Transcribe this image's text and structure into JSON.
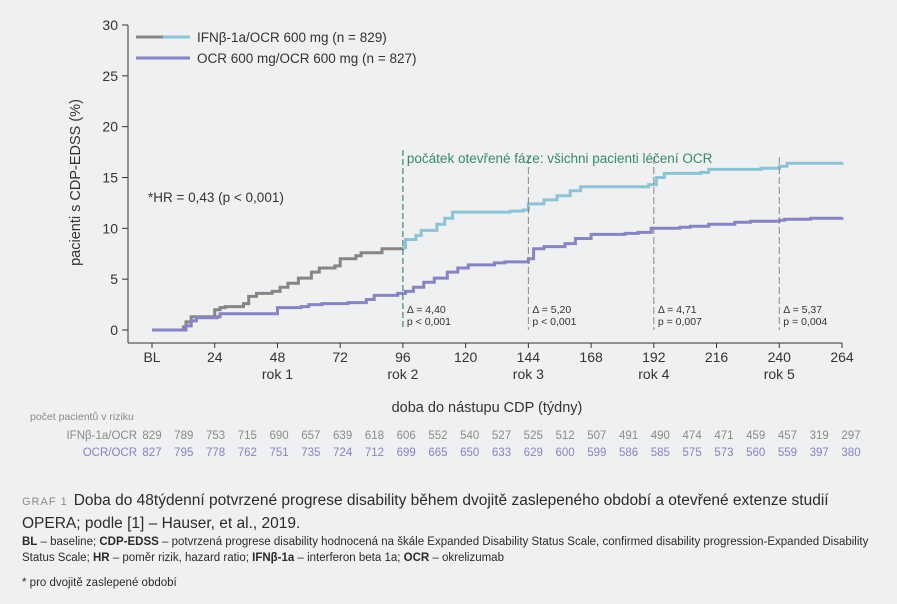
{
  "chart_data": {
    "type": "line",
    "subtype": "kaplan-meier-step",
    "ylabel": "pacienti s CDP-EDSS (%)",
    "xlabel": "doba do nástupu CDP (týdny)",
    "ylim": [
      0,
      30
    ],
    "xlim": [
      0,
      264
    ],
    "y_ticks": [
      0,
      5,
      10,
      15,
      20,
      25,
      30
    ],
    "x_ticks": [
      {
        "value": 0,
        "label": "BL"
      },
      {
        "value": 24,
        "label": "24"
      },
      {
        "value": 48,
        "label": "48"
      },
      {
        "value": 72,
        "label": "72"
      },
      {
        "value": 96,
        "label": "96"
      },
      {
        "value": 120,
        "label": "120"
      },
      {
        "value": 144,
        "label": "144"
      },
      {
        "value": 168,
        "label": "168"
      },
      {
        "value": 192,
        "label": "192"
      },
      {
        "value": 216,
        "label": "216"
      },
      {
        "value": 240,
        "label": "240"
      },
      {
        "value": 264,
        "label": "264"
      }
    ],
    "year_labels": [
      {
        "value": 48,
        "label": "rok 1"
      },
      {
        "value": 96,
        "label": "rok 2"
      },
      {
        "value": 144,
        "label": "rok 3"
      },
      {
        "value": 192,
        "label": "rok 4"
      },
      {
        "value": 240,
        "label": "rok 5"
      }
    ],
    "legend_position": "top-left",
    "grid": false,
    "series": [
      {
        "name": "IFNβ-1a/OCR 600 mg (n = 829)",
        "color_before": "#8a8580",
        "color_after": "#8cc3d5",
        "switch_x": 96,
        "points": [
          [
            0,
            0
          ],
          [
            10,
            0
          ],
          [
            12,
            0.3
          ],
          [
            13,
            0.8
          ],
          [
            15,
            1.3
          ],
          [
            23,
            1.3
          ],
          [
            24,
            2.0
          ],
          [
            26,
            2.2
          ],
          [
            28,
            2.3
          ],
          [
            35,
            2.6
          ],
          [
            37,
            3.3
          ],
          [
            40,
            3.6
          ],
          [
            46,
            3.8
          ],
          [
            49,
            4.2
          ],
          [
            52,
            4.6
          ],
          [
            56,
            5.1
          ],
          [
            61,
            5.7
          ],
          [
            64,
            6.1
          ],
          [
            70,
            6.3
          ],
          [
            72,
            7.0
          ],
          [
            78,
            7.3
          ],
          [
            80,
            7.6
          ],
          [
            88,
            8.0
          ],
          [
            96,
            8.1
          ],
          [
            97,
            8.9
          ],
          [
            101,
            9.3
          ],
          [
            103,
            9.8
          ],
          [
            109,
            10.4
          ],
          [
            112,
            11.0
          ],
          [
            115,
            11.6
          ],
          [
            137,
            11.7
          ],
          [
            142,
            11.8
          ],
          [
            144,
            12.4
          ],
          [
            150,
            12.8
          ],
          [
            155,
            13.2
          ],
          [
            160,
            13.7
          ],
          [
            164,
            14.1
          ],
          [
            190,
            14.3
          ],
          [
            193,
            15.0
          ],
          [
            196,
            15.4
          ],
          [
            210,
            15.5
          ],
          [
            213,
            15.8
          ],
          [
            233,
            15.9
          ],
          [
            240,
            16.1
          ],
          [
            243,
            16.4
          ],
          [
            264,
            16.5
          ]
        ]
      },
      {
        "name": "OCR 600 mg/OCR 600 mg (n = 827)",
        "color": "#8485c2",
        "points": [
          [
            0,
            0
          ],
          [
            12,
            0
          ],
          [
            13,
            0.4
          ],
          [
            15,
            0.9
          ],
          [
            17,
            1.2
          ],
          [
            25,
            1.3
          ],
          [
            26,
            1.6
          ],
          [
            48,
            2.2
          ],
          [
            57,
            2.3
          ],
          [
            60,
            2.5
          ],
          [
            65,
            2.6
          ],
          [
            75,
            2.7
          ],
          [
            82,
            3.0
          ],
          [
            85,
            3.4
          ],
          [
            94,
            3.6
          ],
          [
            97,
            3.8
          ],
          [
            100,
            4.2
          ],
          [
            104,
            4.7
          ],
          [
            108,
            5.1
          ],
          [
            113,
            5.7
          ],
          [
            117,
            6.1
          ],
          [
            121,
            6.4
          ],
          [
            131,
            6.6
          ],
          [
            135,
            6.7
          ],
          [
            144,
            7.0
          ],
          [
            146,
            8.0
          ],
          [
            150,
            8.2
          ],
          [
            158,
            8.5
          ],
          [
            162,
            9.0
          ],
          [
            168,
            9.4
          ],
          [
            181,
            9.5
          ],
          [
            186,
            9.6
          ],
          [
            191,
            10.0
          ],
          [
            202,
            10.1
          ],
          [
            206,
            10.2
          ],
          [
            213,
            10.4
          ],
          [
            223,
            10.6
          ],
          [
            229,
            10.7
          ],
          [
            240,
            10.8
          ],
          [
            242,
            10.9
          ],
          [
            252,
            11.0
          ],
          [
            264,
            11.1
          ]
        ]
      }
    ],
    "annotations": {
      "hr_text": "*HR = 0,43 (p < 0,001)",
      "phase_label": "počátek otevřené fáze: všichni pacienti léčení OCR",
      "deltas": [
        {
          "x": 96,
          "delta": "Δ = 4,40",
          "p": "p < 0,001"
        },
        {
          "x": 144,
          "delta": "Δ = 5,20",
          "p": "p < 0,001"
        },
        {
          "x": 192,
          "delta": "Δ = 4,71",
          "p": "p = 0,007"
        },
        {
          "x": 240,
          "delta": "Δ = 5,37",
          "p": "p = 0,004"
        }
      ]
    },
    "risk_table": {
      "title": "počet pacientů v riziku",
      "rows": [
        {
          "label": "IFNβ-1a/OCR",
          "color": "#8a8a8a",
          "values": [
            "829",
            "789",
            "753",
            "715",
            "690",
            "657",
            "639",
            "618",
            "606",
            "552",
            "540",
            "527",
            "525",
            "512",
            "507",
            "491",
            "490",
            "474",
            "471",
            "459",
            "457",
            "319",
            "297"
          ]
        },
        {
          "label": "OCR/OCR",
          "color": "#8485c2",
          "values": [
            "827",
            "795",
            "778",
            "762",
            "751",
            "735",
            "724",
            "712",
            "699",
            "665",
            "650",
            "633",
            "629",
            "600",
            "599",
            "586",
            "585",
            "575",
            "573",
            "560",
            "559",
            "397",
            "380"
          ]
        }
      ]
    }
  },
  "caption": {
    "label": "GRAF 1",
    "text": "Doba do 48týdenní potvrzené progrese disability během dvojitě zaslepeného období a otevřené extenze studií OPERA; podle [1] – Hauser, et al., 2019."
  },
  "abbrev": [
    {
      "term": "BL",
      "def": " – baseline; "
    },
    {
      "term": "CDP-EDSS",
      "def": " – potvrzená progrese disability hodnocená na škále Expanded Disability Status Scale, confirmed disability progression-Expanded Disability Status Scale; "
    },
    {
      "term": "HR",
      "def": " – poměr rizik, hazard ratio; "
    },
    {
      "term": "IFNβ-1a",
      "def": " – interferon beta 1a; "
    },
    {
      "term": "OCR",
      "def": " – okrelizumab"
    }
  ],
  "footnote": "* pro dvojitě zaslepené období"
}
